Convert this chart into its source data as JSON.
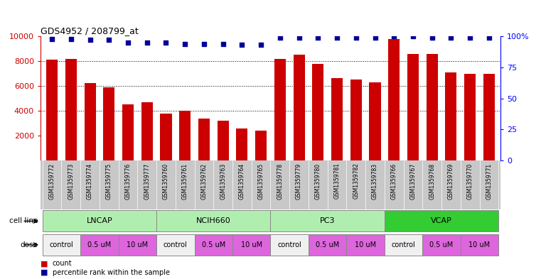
{
  "title": "GDS4952 / 208799_at",
  "samples": [
    "GSM1359772",
    "GSM1359773",
    "GSM1359774",
    "GSM1359775",
    "GSM1359776",
    "GSM1359777",
    "GSM1359760",
    "GSM1359761",
    "GSM1359762",
    "GSM1359763",
    "GSM1359764",
    "GSM1359765",
    "GSM1359778",
    "GSM1359779",
    "GSM1359780",
    "GSM1359781",
    "GSM1359782",
    "GSM1359783",
    "GSM1359766",
    "GSM1359767",
    "GSM1359768",
    "GSM1359769",
    "GSM1359770",
    "GSM1359771"
  ],
  "counts": [
    8100,
    8200,
    6250,
    5900,
    4500,
    4700,
    3750,
    4000,
    3350,
    3200,
    2550,
    2380,
    8150,
    8500,
    7800,
    6650,
    6500,
    6300,
    9800,
    8550,
    8550,
    7100,
    7000,
    6950
  ],
  "percentile_ranks": [
    98,
    98,
    97,
    97,
    95,
    95,
    95,
    94,
    94,
    94,
    93,
    93,
    99,
    99,
    99,
    99,
    99,
    99,
    100,
    100,
    99,
    99,
    99,
    99
  ],
  "cell_lines": [
    {
      "name": "LNCAP",
      "start": 0,
      "end": 6,
      "color": "#b0eeb0"
    },
    {
      "name": "NCIH660",
      "start": 6,
      "end": 12,
      "color": "#b0eeb0"
    },
    {
      "name": "PC3",
      "start": 12,
      "end": 18,
      "color": "#b0eeb0"
    },
    {
      "name": "VCAP",
      "start": 18,
      "end": 24,
      "color": "#33cc33"
    }
  ],
  "doses": [
    {
      "label": "control",
      "start": 0,
      "end": 2
    },
    {
      "label": "0.5 uM",
      "start": 2,
      "end": 4
    },
    {
      "label": "10 uM",
      "start": 4,
      "end": 6
    },
    {
      "label": "control",
      "start": 6,
      "end": 8
    },
    {
      "label": "0.5 uM",
      "start": 8,
      "end": 10
    },
    {
      "label": "10 uM",
      "start": 10,
      "end": 12
    },
    {
      "label": "control",
      "start": 12,
      "end": 14
    },
    {
      "label": "0.5 uM",
      "start": 14,
      "end": 16
    },
    {
      "label": "10 uM",
      "start": 16,
      "end": 18
    },
    {
      "label": "control",
      "start": 18,
      "end": 20
    },
    {
      "label": "0.5 uM",
      "start": 20,
      "end": 22
    },
    {
      "label": "10 uM",
      "start": 22,
      "end": 24
    }
  ],
  "dose_colors": {
    "control": "#f0f0f0",
    "0.5 uM": "#dd66dd",
    "10 uM": "#dd66dd"
  },
  "bar_color": "#cc0000",
  "dot_color": "#000099",
  "ylim_left": [
    0,
    10000
  ],
  "ylim_right": [
    0,
    100
  ],
  "yticks_left": [
    2000,
    4000,
    6000,
    8000,
    10000
  ],
  "yticks_right": [
    0,
    25,
    50,
    75,
    100
  ],
  "background_color": "#ffffff",
  "sample_label_bg": "#c8c8c8",
  "cell_line_divider_color": "#888888"
}
